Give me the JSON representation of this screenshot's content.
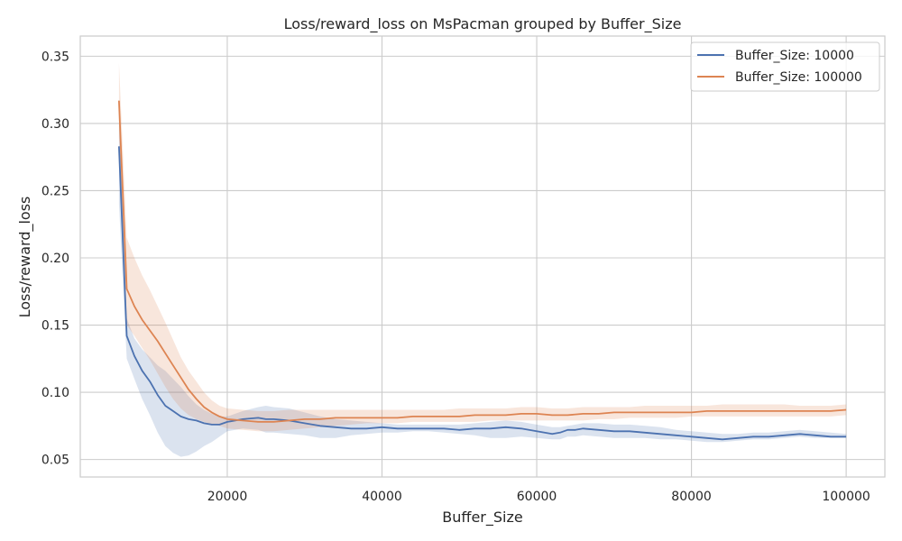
{
  "chart_data": {
    "type": "line",
    "title": "Loss/reward_loss on MsPacman grouped by Buffer_Size",
    "xlabel": "Buffer_Size",
    "ylabel": "Loss/reward_loss",
    "xlim": [
      1000,
      105000
    ],
    "ylim": [
      0.037,
      0.365
    ],
    "xticks": [
      20000,
      40000,
      60000,
      80000,
      100000
    ],
    "xtick_labels": [
      "20000",
      "40000",
      "60000",
      "80000",
      "100000"
    ],
    "yticks": [
      0.05,
      0.1,
      0.15,
      0.2,
      0.25,
      0.3,
      0.35
    ],
    "ytick_labels": [
      "0.05",
      "0.10",
      "0.15",
      "0.20",
      "0.25",
      "0.30",
      "0.35"
    ],
    "grid": true,
    "legend_position": "top-right",
    "series": [
      {
        "name": "Buffer_Size: 10000",
        "color": "#4c72b0",
        "x": [
          6000,
          7000,
          8000,
          9000,
          10000,
          11000,
          12000,
          13000,
          14000,
          15000,
          16000,
          17000,
          18000,
          19000,
          20000,
          22000,
          24000,
          25000,
          26000,
          28000,
          30000,
          32000,
          34000,
          36000,
          38000,
          40000,
          42000,
          44000,
          46000,
          48000,
          50000,
          52000,
          54000,
          56000,
          58000,
          60000,
          62000,
          63000,
          64000,
          65000,
          66000,
          68000,
          70000,
          72000,
          74000,
          76000,
          78000,
          80000,
          82000,
          84000,
          86000,
          88000,
          90000,
          92000,
          94000,
          96000,
          98000,
          100000
        ],
        "y": [
          0.283,
          0.142,
          0.127,
          0.116,
          0.108,
          0.098,
          0.09,
          0.086,
          0.082,
          0.08,
          0.079,
          0.077,
          0.076,
          0.076,
          0.078,
          0.08,
          0.081,
          0.08,
          0.08,
          0.079,
          0.077,
          0.075,
          0.074,
          0.073,
          0.073,
          0.074,
          0.073,
          0.073,
          0.073,
          0.073,
          0.072,
          0.073,
          0.073,
          0.074,
          0.073,
          0.071,
          0.069,
          0.07,
          0.072,
          0.072,
          0.073,
          0.072,
          0.071,
          0.071,
          0.07,
          0.069,
          0.068,
          0.067,
          0.066,
          0.065,
          0.066,
          0.067,
          0.067,
          0.068,
          0.069,
          0.068,
          0.067,
          0.067
        ],
        "lower": [
          0.24,
          0.125,
          0.11,
          0.095,
          0.083,
          0.07,
          0.06,
          0.055,
          0.052,
          0.053,
          0.056,
          0.06,
          0.063,
          0.067,
          0.071,
          0.073,
          0.072,
          0.07,
          0.07,
          0.069,
          0.068,
          0.066,
          0.066,
          0.068,
          0.069,
          0.07,
          0.07,
          0.071,
          0.071,
          0.07,
          0.069,
          0.068,
          0.066,
          0.066,
          0.067,
          0.066,
          0.065,
          0.065,
          0.067,
          0.067,
          0.068,
          0.067,
          0.066,
          0.066,
          0.066,
          0.065,
          0.065,
          0.064,
          0.063,
          0.063,
          0.064,
          0.065,
          0.065,
          0.066,
          0.067,
          0.066,
          0.066,
          0.066
        ],
        "upper": [
          0.31,
          0.155,
          0.14,
          0.132,
          0.126,
          0.12,
          0.116,
          0.11,
          0.104,
          0.097,
          0.091,
          0.087,
          0.084,
          0.082,
          0.082,
          0.086,
          0.089,
          0.09,
          0.089,
          0.088,
          0.085,
          0.082,
          0.08,
          0.079,
          0.078,
          0.077,
          0.076,
          0.076,
          0.076,
          0.076,
          0.076,
          0.077,
          0.078,
          0.079,
          0.078,
          0.076,
          0.074,
          0.074,
          0.075,
          0.076,
          0.077,
          0.077,
          0.076,
          0.076,
          0.075,
          0.074,
          0.072,
          0.071,
          0.07,
          0.069,
          0.069,
          0.07,
          0.07,
          0.071,
          0.072,
          0.071,
          0.07,
          0.069
        ]
      },
      {
        "name": "Buffer_Size: 100000",
        "color": "#dd8452",
        "x": [
          6000,
          7000,
          8000,
          9000,
          10000,
          11000,
          12000,
          13000,
          14000,
          15000,
          16000,
          17000,
          18000,
          19000,
          20000,
          22000,
          24000,
          26000,
          28000,
          30000,
          32000,
          34000,
          36000,
          38000,
          40000,
          42000,
          44000,
          46000,
          48000,
          50000,
          52000,
          54000,
          56000,
          58000,
          60000,
          62000,
          64000,
          66000,
          68000,
          70000,
          72000,
          74000,
          76000,
          78000,
          80000,
          82000,
          84000,
          86000,
          88000,
          90000,
          92000,
          94000,
          96000,
          98000,
          100000
        ],
        "y": [
          0.317,
          0.177,
          0.164,
          0.154,
          0.146,
          0.138,
          0.129,
          0.12,
          0.111,
          0.102,
          0.095,
          0.089,
          0.085,
          0.082,
          0.08,
          0.079,
          0.078,
          0.078,
          0.079,
          0.08,
          0.08,
          0.081,
          0.081,
          0.081,
          0.081,
          0.081,
          0.082,
          0.082,
          0.082,
          0.082,
          0.083,
          0.083,
          0.083,
          0.084,
          0.084,
          0.083,
          0.083,
          0.084,
          0.084,
          0.085,
          0.085,
          0.085,
          0.085,
          0.085,
          0.085,
          0.086,
          0.086,
          0.086,
          0.086,
          0.086,
          0.086,
          0.086,
          0.086,
          0.086,
          0.087
        ],
        "lower": [
          0.29,
          0.15,
          0.142,
          0.133,
          0.124,
          0.114,
          0.104,
          0.095,
          0.088,
          0.083,
          0.08,
          0.078,
          0.076,
          0.075,
          0.073,
          0.072,
          0.071,
          0.071,
          0.072,
          0.073,
          0.074,
          0.075,
          0.076,
          0.077,
          0.077,
          0.077,
          0.078,
          0.078,
          0.078,
          0.078,
          0.078,
          0.079,
          0.079,
          0.079,
          0.079,
          0.079,
          0.079,
          0.079,
          0.08,
          0.08,
          0.081,
          0.081,
          0.081,
          0.081,
          0.082,
          0.082,
          0.082,
          0.082,
          0.082,
          0.082,
          0.082,
          0.082,
          0.082,
          0.082,
          0.083
        ],
        "upper": [
          0.345,
          0.215,
          0.2,
          0.187,
          0.176,
          0.164,
          0.152,
          0.139,
          0.126,
          0.116,
          0.108,
          0.1,
          0.094,
          0.09,
          0.088,
          0.087,
          0.086,
          0.086,
          0.087,
          0.087,
          0.087,
          0.087,
          0.087,
          0.087,
          0.087,
          0.087,
          0.087,
          0.087,
          0.087,
          0.088,
          0.088,
          0.088,
          0.088,
          0.089,
          0.089,
          0.088,
          0.088,
          0.089,
          0.089,
          0.089,
          0.089,
          0.09,
          0.09,
          0.09,
          0.09,
          0.09,
          0.091,
          0.091,
          0.091,
          0.091,
          0.091,
          0.09,
          0.09,
          0.09,
          0.091
        ]
      }
    ]
  }
}
